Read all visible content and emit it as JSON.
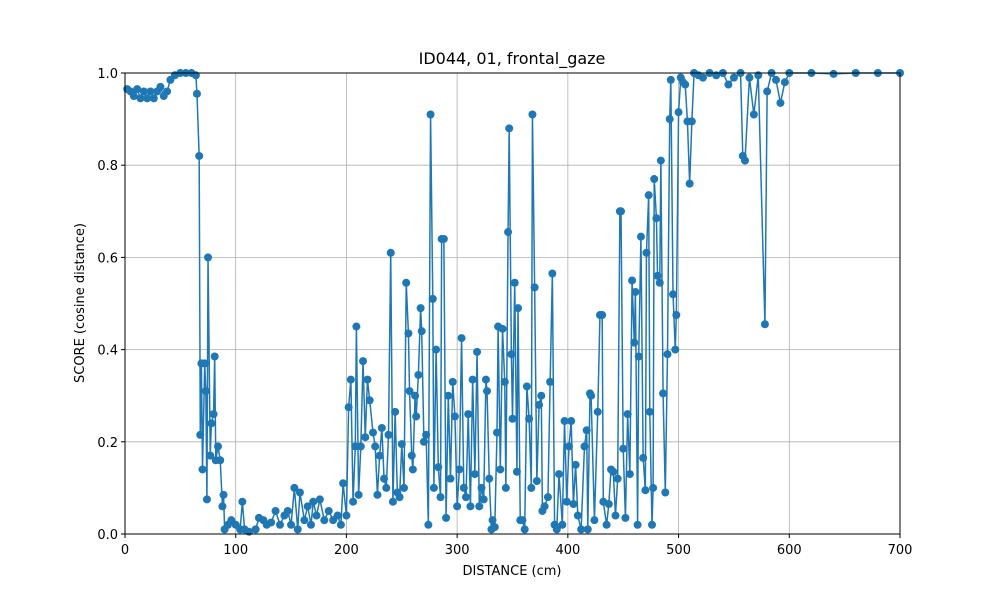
{
  "chart_data": {
    "type": "line",
    "title": "ID044, 01, frontal_gaze",
    "x_label": "DISTANCE (cm)",
    "y_label": "SCORE (cosine distance)",
    "color": "#1f77b4",
    "grid": true,
    "xlim": [
      0,
      700
    ],
    "ylim": [
      0,
      1
    ],
    "xticks": [
      0,
      100,
      200,
      300,
      400,
      500,
      600,
      700
    ],
    "yticks": [
      {
        "value": 0,
        "label": "0.0"
      },
      0.2,
      0.4,
      0.6,
      0.8,
      {
        "value": 1,
        "label": "1.0"
      }
    ],
    "x": [
      2,
      5,
      8,
      11,
      14,
      17,
      20,
      23,
      26,
      29,
      32,
      35,
      38,
      41,
      45,
      50,
      55,
      60,
      64,
      65,
      67,
      68,
      69,
      70,
      72,
      73,
      74,
      75,
      77,
      78,
      80,
      81,
      82,
      84,
      86,
      88,
      89,
      90,
      93,
      96,
      100,
      104,
      106,
      108,
      112,
      118,
      121,
      125,
      128,
      132,
      136,
      140,
      144,
      147,
      150,
      153,
      156,
      158,
      162,
      165,
      168,
      170,
      173,
      176,
      180,
      184,
      188,
      192,
      195,
      197,
      200,
      202,
      204,
      206,
      208,
      209,
      211,
      213,
      215,
      217,
      219,
      221,
      224,
      226,
      228,
      230,
      232,
      234,
      236,
      238,
      240,
      242,
      244,
      246,
      248,
      250,
      252,
      254,
      256,
      257,
      259,
      260,
      262,
      263,
      265,
      267,
      268,
      270,
      272,
      274,
      276,
      278,
      279,
      281,
      283,
      285,
      286,
      288,
      290,
      292,
      294,
      296,
      298,
      300,
      302,
      304,
      306,
      308,
      310,
      312,
      314,
      316,
      318,
      320,
      322,
      324,
      326,
      327,
      329,
      331,
      332,
      334,
      336,
      337,
      339,
      341,
      343,
      344,
      346,
      347,
      349,
      350,
      352,
      354,
      355,
      357,
      359,
      361,
      363,
      365,
      367,
      368,
      370,
      372,
      374,
      376,
      377,
      379,
      382,
      384,
      386,
      388,
      390,
      392,
      395,
      397,
      399,
      401,
      403,
      405,
      407,
      409,
      412,
      415,
      417,
      418,
      420,
      421,
      424,
      427,
      429,
      431,
      432,
      435,
      437,
      439,
      441,
      443,
      445,
      447,
      448,
      450,
      452,
      454,
      456,
      458,
      460,
      461,
      463,
      464,
      466,
      468,
      470,
      471,
      473,
      474,
      476,
      477,
      478,
      480,
      481,
      483,
      484,
      486,
      488,
      490,
      492,
      493,
      495,
      497,
      498,
      500,
      502,
      504,
      506,
      508,
      510,
      512,
      514,
      518,
      522,
      528,
      534,
      540,
      545,
      550,
      556,
      558,
      560,
      564,
      568,
      572,
      578,
      580,
      584,
      588,
      592,
      596,
      600,
      620,
      640,
      660,
      680,
      700
    ],
    "values": [
      0.965,
      0.96,
      0.95,
      0.965,
      0.945,
      0.96,
      0.945,
      0.96,
      0.945,
      0.96,
      0.97,
      0.95,
      0.96,
      0.985,
      0.995,
      1.0,
      1.0,
      1.0,
      0.995,
      0.955,
      0.82,
      0.215,
      0.37,
      0.14,
      0.37,
      0.31,
      0.075,
      0.6,
      0.17,
      0.24,
      0.26,
      0.385,
      0.16,
      0.19,
      0.16,
      0.06,
      0.085,
      0.01,
      0.02,
      0.03,
      0.02,
      0.01,
      0.07,
      0.01,
      0.005,
      0.01,
      0.035,
      0.03,
      0.02,
      0.025,
      0.05,
      0.02,
      0.04,
      0.05,
      0.02,
      0.1,
      0.01,
      0.09,
      0.03,
      0.06,
      0.02,
      0.07,
      0.04,
      0.075,
      0.03,
      0.05,
      0.03,
      0.04,
      0.02,
      0.11,
      0.04,
      0.275,
      0.335,
      0.07,
      0.19,
      0.45,
      0.085,
      0.19,
      0.375,
      0.21,
      0.335,
      0.29,
      0.22,
      0.19,
      0.085,
      0.17,
      0.23,
      0.12,
      0.1,
      0.215,
      0.61,
      0.07,
      0.265,
      0.09,
      0.08,
      0.195,
      0.1,
      0.545,
      0.435,
      0.31,
      0.17,
      0.14,
      0.3,
      0.255,
      0.345,
      0.49,
      0.44,
      0.2,
      0.215,
      0.02,
      0.91,
      0.51,
      0.1,
      0.4,
      0.145,
      0.08,
      0.64,
      0.64,
      0.035,
      0.3,
      0.12,
      0.33,
      0.255,
      0.06,
      0.14,
      0.425,
      0.1,
      0.08,
      0.26,
      0.06,
      0.335,
      0.13,
      0.395,
      0.06,
      0.1,
      0.075,
      0.335,
      0.31,
      0.12,
      0.01,
      0.03,
      0.015,
      0.22,
      0.45,
      0.14,
      0.445,
      0.33,
      0.1,
      0.655,
      0.88,
      0.39,
      0.25,
      0.545,
      0.135,
      0.49,
      0.03,
      0.03,
      0.01,
      0.32,
      0.25,
      0.1,
      0.91,
      0.535,
      0.115,
      0.28,
      0.3,
      0.05,
      0.06,
      0.08,
      0.33,
      0.565,
      0.02,
      0.01,
      0.13,
      0.02,
      0.245,
      0.07,
      0.19,
      0.245,
      0.065,
      0.15,
      0.04,
      0.01,
      0.19,
      0.225,
      0.01,
      0.305,
      0.3,
      0.03,
      0.265,
      0.475,
      0.475,
      0.07,
      0.02,
      0.065,
      0.14,
      0.135,
      0.04,
      0.12,
      0.7,
      0.7,
      0.185,
      0.035,
      0.26,
      0.13,
      0.55,
      0.415,
      0.525,
      0.02,
      0.385,
      0.645,
      0.165,
      0.095,
      0.61,
      0.735,
      0.265,
      0.02,
      0.1,
      0.77,
      0.685,
      0.56,
      0.545,
      0.81,
      0.305,
      0.09,
      0.39,
      0.9,
      0.985,
      0.52,
      0.4,
      0.475,
      0.915,
      0.99,
      0.98,
      0.975,
      0.895,
      0.76,
      0.895,
      1.0,
      0.995,
      0.99,
      1.0,
      0.995,
      1.0,
      0.975,
      0.99,
      1.0,
      0.82,
      0.81,
      0.99,
      0.91,
      0.995,
      0.455,
      0.96,
      1.0,
      0.985,
      0.935,
      0.98,
      1.0,
      1.0,
      0.998,
      1.0,
      1.0,
      1.0
    ]
  }
}
